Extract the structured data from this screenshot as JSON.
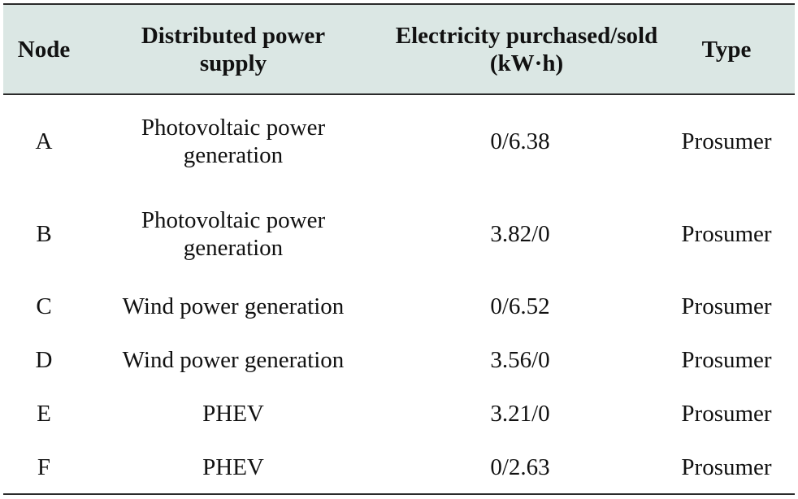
{
  "table": {
    "headers": {
      "node": "Node",
      "supply": "Distributed power supply",
      "electricity": "Electricity purchased/sold (kW·h)",
      "type": "Type"
    },
    "rows": [
      {
        "node": "A",
        "supply": "Photovoltaic power generation",
        "electricity": "0/6.38",
        "type": "Prosumer"
      },
      {
        "node": "B",
        "supply": "Photovoltaic power generation",
        "electricity": "3.82/0",
        "type": "Prosumer"
      },
      {
        "node": "C",
        "supply": "Wind power generation",
        "electricity": "0/6.52",
        "type": "Prosumer"
      },
      {
        "node": "D",
        "supply": "Wind power generation",
        "electricity": "3.56/0",
        "type": "Prosumer"
      },
      {
        "node": "E",
        "supply": "PHEV",
        "electricity": "3.21/0",
        "type": "Prosumer"
      },
      {
        "node": "F",
        "supply": "PHEV",
        "electricity": "0/2.63",
        "type": "Prosumer"
      }
    ]
  },
  "colors": {
    "header_background": "#dbe7e4",
    "rule": "#2a2a2a",
    "text": "#111111"
  }
}
